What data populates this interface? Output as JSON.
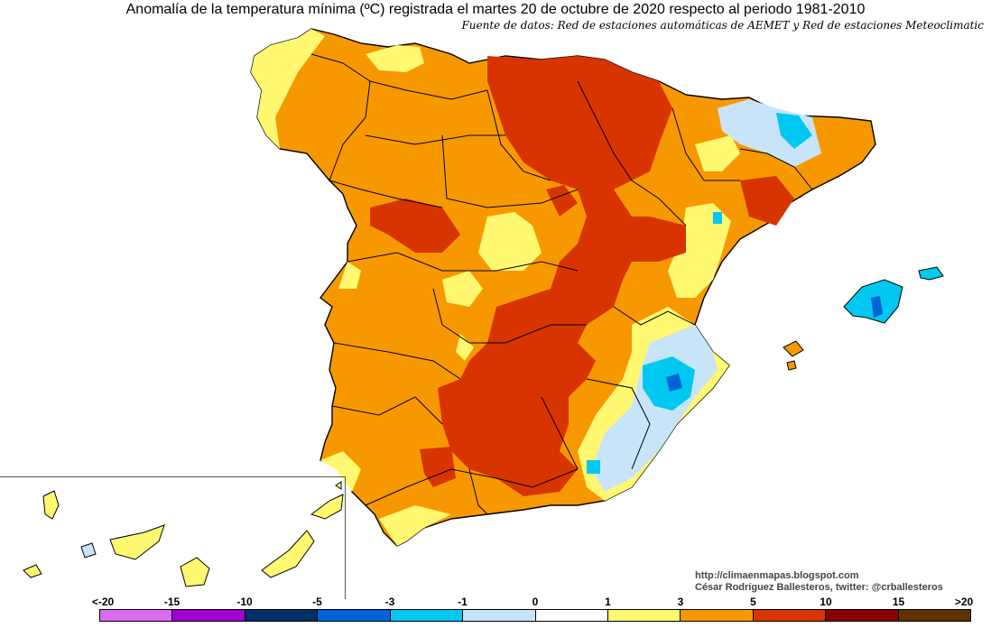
{
  "title": "Anomalía de la temperatura mínima (ºC) registrada el martes 20 de octubre de 2020 respecto al periodo 1981-2010",
  "subtitle": "Fuente de datos: Red de estaciones automáticas de AEMET y Red de estaciones Meteoclimatic",
  "credits": {
    "url": "http://climaenmapas.blogspot.com",
    "author": "César Rodríguez Ballesteros, twitter: @crballesteros"
  },
  "legend": {
    "labels": [
      "<-20",
      "-15",
      "-10",
      "-5",
      "-3",
      "-1",
      "0",
      "1",
      "3",
      "5",
      "10",
      "15",
      ">20"
    ],
    "colors": [
      "#d96cf0",
      "#a000d0",
      "#003066",
      "#0064d8",
      "#00c8f0",
      "#c8e4f8",
      "#ffffff",
      "#fff870",
      "#f89800",
      "#d83400",
      "#880000",
      "#603000"
    ]
  },
  "palette": {
    "orange": "#f89800",
    "red": "#d83400",
    "yellow": "#fff870",
    "lightblue": "#c8e4f8",
    "cyan": "#00c8f0",
    "blue": "#0064d8"
  }
}
